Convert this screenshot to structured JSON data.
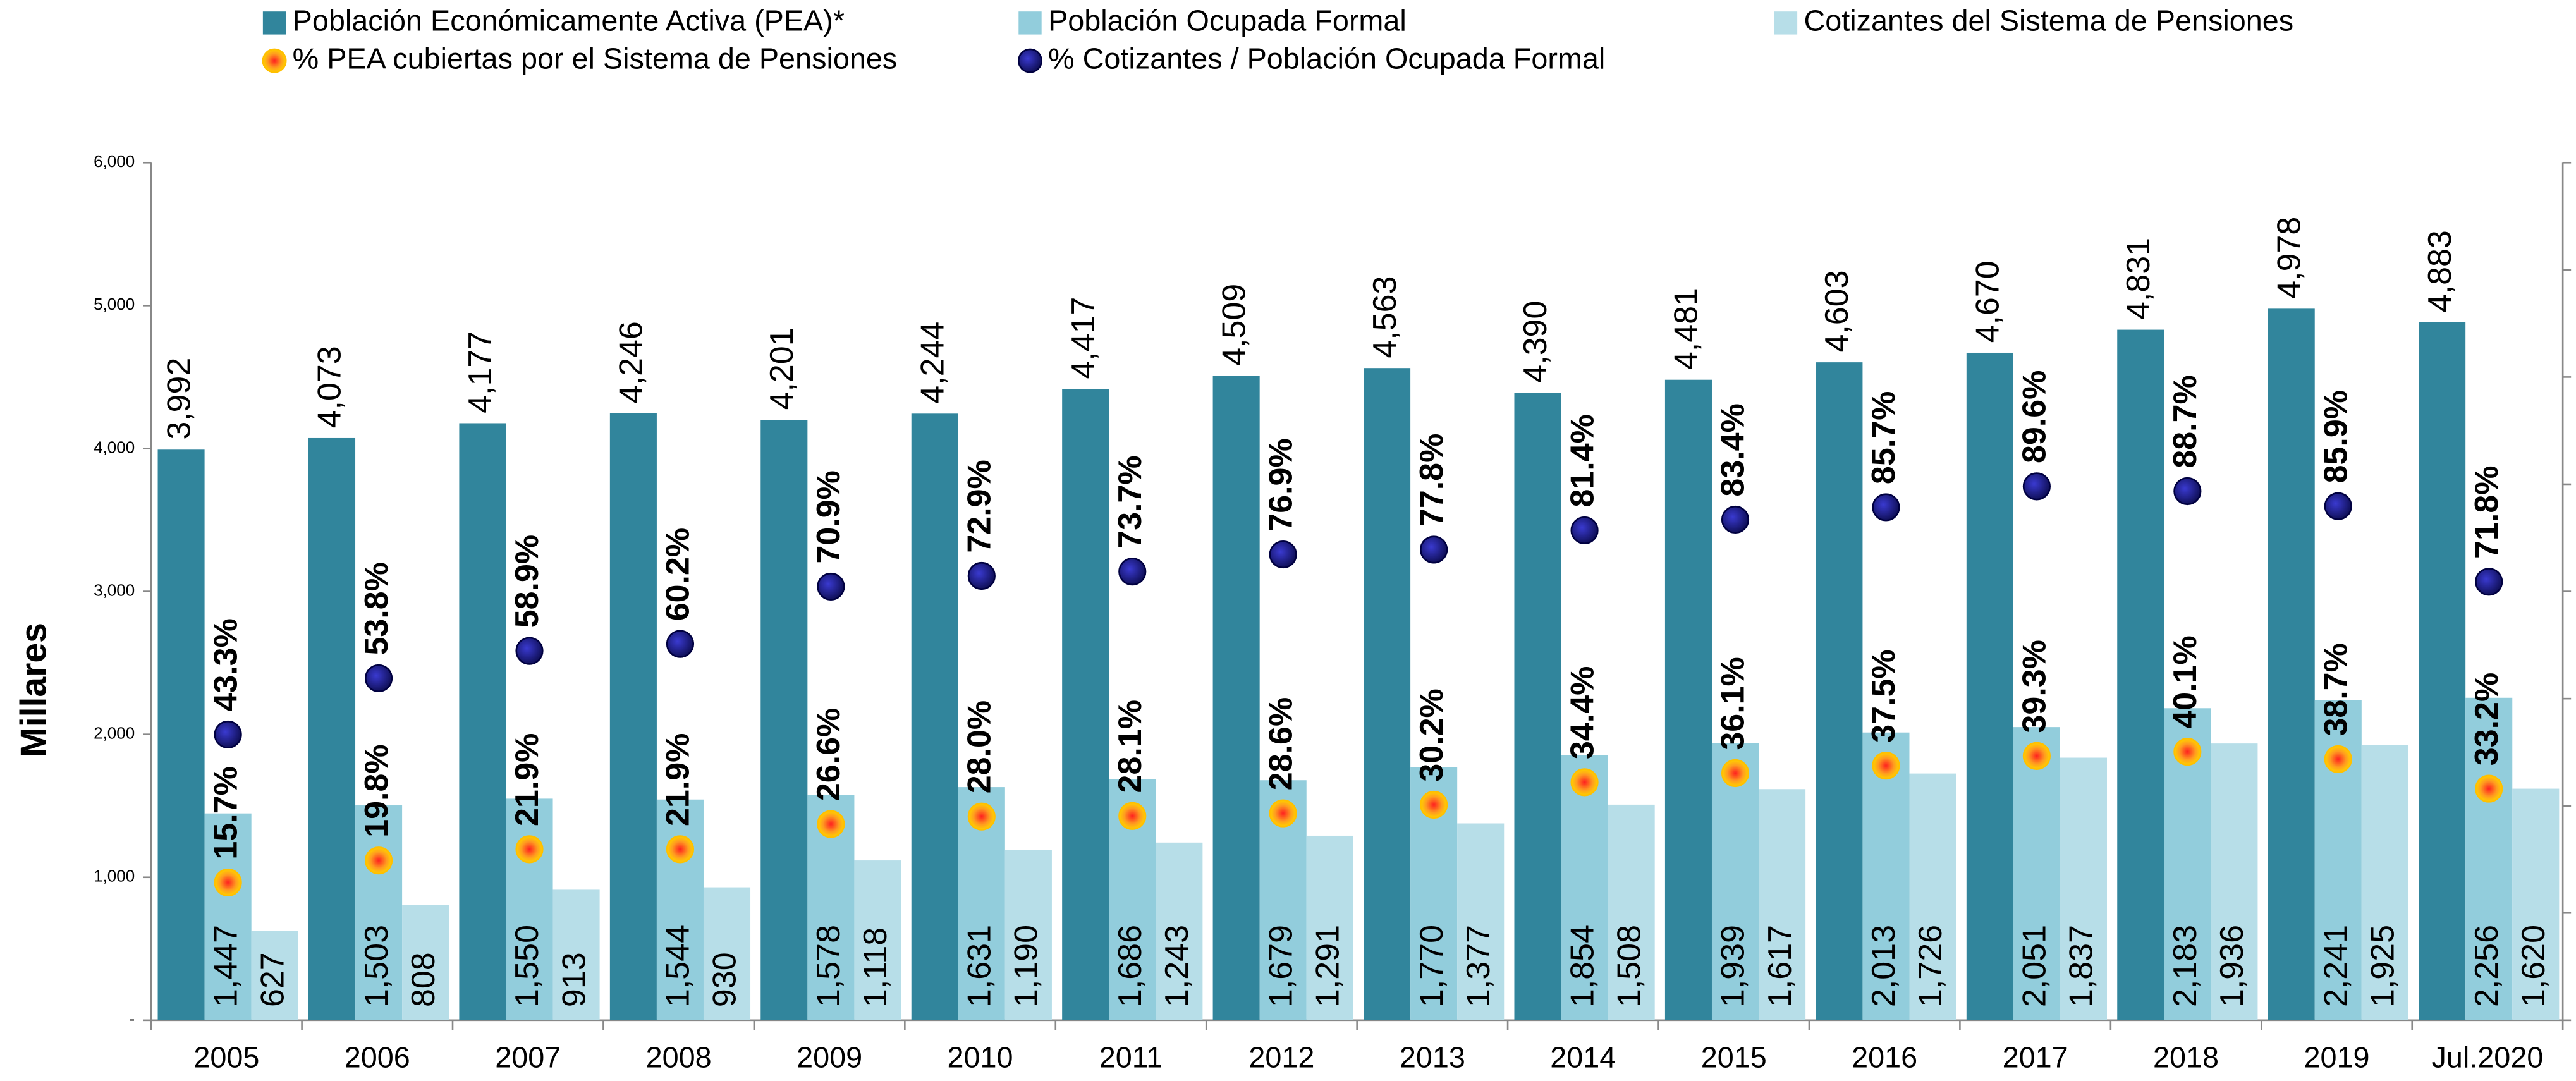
{
  "chart_data": {
    "type": "bar",
    "y_label": "Millares",
    "categories": [
      "2005",
      "2006",
      "2007",
      "2008",
      "2009",
      "2010",
      "2011",
      "2012",
      "2013",
      "2014",
      "2015",
      "2016",
      "2017",
      "2018",
      "2019",
      "Jul.2020"
    ],
    "series": [
      {
        "name": "Población Económicamente Activa (PEA)*",
        "color": "#31859c",
        "type": "bar",
        "values": [
          3992,
          4073,
          4177,
          4246,
          4201,
          4244,
          4417,
          4509,
          4563,
          4390,
          4481,
          4603,
          4670,
          4831,
          4978,
          4883
        ],
        "value_labels": [
          "3,992",
          "4,073",
          "4,177",
          "4,246",
          "4,201",
          "4,244",
          "4,417",
          "4,509",
          "4,563",
          "4,390",
          "4,481",
          "4,603",
          "4,670",
          "4,831",
          "4,978",
          "4,883"
        ]
      },
      {
        "name": "Población Ocupada Formal",
        "color": "#92cddc",
        "type": "bar",
        "values": [
          1447,
          1503,
          1550,
          1544,
          1578,
          1631,
          1686,
          1679,
          1770,
          1854,
          1939,
          2013,
          2051,
          2183,
          2241,
          2256
        ],
        "value_labels": [
          "1,447",
          "1,503",
          "1,550",
          "1,544",
          "1,578",
          "1,631",
          "1,686",
          "1,679",
          "1,770",
          "1,854",
          "1,939",
          "2,013",
          "2,051",
          "2,183",
          "2,241",
          "2,256"
        ]
      },
      {
        "name": "Cotizantes del Sistema de Pensiones",
        "color": "#b7dee8",
        "type": "bar",
        "values": [
          627,
          808,
          913,
          930,
          1118,
          1190,
          1243,
          1291,
          1377,
          1508,
          1617,
          1726,
          1837,
          1936,
          1925,
          1620
        ],
        "value_labels": [
          "627",
          "808",
          "913",
          "930",
          "1,118",
          "1,190",
          "1,243",
          "1,291",
          "1,377",
          "1,508",
          "1,617",
          "1,726",
          "1,837",
          "1,936",
          "1,925",
          "1,620"
        ]
      },
      {
        "name": "% PEA cubiertas por el Sistema de Pensiones",
        "color": "#f7931e",
        "type": "dot",
        "axis": "y2",
        "values": [
          15.7,
          19.8,
          21.9,
          21.9,
          26.6,
          28.0,
          28.1,
          28.6,
          30.2,
          34.4,
          36.1,
          37.5,
          39.3,
          40.1,
          38.7,
          33.2
        ],
        "value_labels": [
          "15.7%",
          "19.8%",
          "21.9%",
          "21.9%",
          "26.6%",
          "28.0%",
          "28.1%",
          "28.6%",
          "30.2%",
          "34.4%",
          "36.1%",
          "37.5%",
          "39.3%",
          "40.1%",
          "38.7%",
          "33.2%"
        ]
      },
      {
        "name": "% Cotizantes / Población Ocupada Formal",
        "color": "#1a1a80",
        "type": "dot",
        "axis": "y2",
        "values": [
          43.3,
          53.8,
          58.9,
          60.2,
          70.9,
          72.9,
          73.7,
          76.9,
          77.8,
          81.4,
          83.4,
          85.7,
          89.6,
          88.7,
          85.9,
          71.8
        ],
        "value_labels": [
          "43.3%",
          "53.8%",
          "58.9%",
          "60.2%",
          "70.9%",
          "72.9%",
          "73.7%",
          "76.9%",
          "77.8%",
          "81.4%",
          "83.4%",
          "85.7%",
          "89.6%",
          "88.7%",
          "85.9%",
          "71.8%"
        ]
      }
    ],
    "ylim": [
      0,
      6000
    ],
    "yticks": [
      {
        "value": 0,
        "label": "-"
      },
      {
        "value": 1000,
        "label": "1,000"
      },
      {
        "value": 2000,
        "label": "2,000"
      },
      {
        "value": 3000,
        "label": "3,000"
      },
      {
        "value": 4000,
        "label": "4,000"
      },
      {
        "value": 5000,
        "label": "5,000"
      },
      {
        "value": 6000,
        "label": "6,000"
      }
    ],
    "y2lim": [
      -10,
      150
    ],
    "y2ticks": [
      -10,
      10,
      30,
      50,
      70,
      90,
      110,
      130,
      150
    ],
    "grid": false
  }
}
